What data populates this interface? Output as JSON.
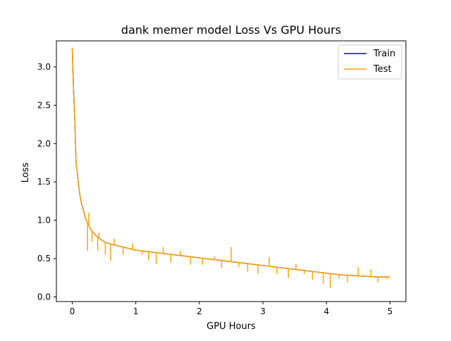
{
  "chart_data": {
    "type": "line",
    "title": "dank memer model Loss Vs GPU Hours",
    "xlabel": "GPU Hours",
    "ylabel": "Loss",
    "xlim": [
      -0.25,
      5.25
    ],
    "ylim": [
      -0.06,
      3.34
    ],
    "xticks": [
      0,
      1,
      2,
      3,
      4,
      5
    ],
    "xtick_labels": [
      "0",
      "1",
      "2",
      "3",
      "4",
      "5"
    ],
    "yticks": [
      0.0,
      0.5,
      1.0,
      1.5,
      2.0,
      2.5,
      3.0
    ],
    "ytick_labels": [
      "0.0",
      "0.5",
      "1.0",
      "1.5",
      "2.0",
      "2.5",
      "3.0"
    ],
    "grid": false,
    "legend_position": "top-right",
    "series": [
      {
        "name": "Train",
        "color": "#0000ff",
        "x": [
          0.0,
          0.02,
          0.04,
          0.06,
          0.08,
          0.1,
          0.12,
          0.15,
          0.18,
          0.2,
          0.22,
          0.25,
          0.3,
          0.35,
          0.4,
          0.45,
          0.5,
          0.6,
          0.7,
          0.8,
          0.9,
          1.0,
          1.2,
          1.4,
          1.6,
          1.8,
          2.0,
          2.2,
          2.4,
          2.6,
          2.8,
          3.0,
          3.2,
          3.4,
          3.6,
          3.8,
          4.0,
          4.2,
          4.4,
          4.6,
          4.8,
          5.0
        ],
        "y": [
          3.25,
          2.7,
          2.3,
          1.75,
          1.62,
          1.45,
          1.33,
          1.2,
          1.12,
          1.05,
          1.0,
          0.95,
          0.87,
          0.82,
          0.78,
          0.75,
          0.72,
          0.69,
          0.67,
          0.65,
          0.63,
          0.61,
          0.59,
          0.57,
          0.55,
          0.53,
          0.51,
          0.49,
          0.47,
          0.45,
          0.43,
          0.41,
          0.39,
          0.37,
          0.35,
          0.33,
          0.31,
          0.29,
          0.28,
          0.27,
          0.26,
          0.26
        ]
      },
      {
        "name": "Test",
        "color": "#ffa500",
        "x": [
          0.0,
          0.02,
          0.04,
          0.06,
          0.08,
          0.1,
          0.12,
          0.15,
          0.18,
          0.2,
          0.22,
          0.25,
          0.3,
          0.35,
          0.4,
          0.45,
          0.5,
          0.6,
          0.7,
          0.8,
          0.9,
          1.0,
          1.2,
          1.4,
          1.6,
          1.8,
          2.0,
          2.2,
          2.4,
          2.6,
          2.8,
          3.0,
          3.2,
          3.4,
          3.6,
          3.8,
          4.0,
          4.2,
          4.4,
          4.6,
          4.8,
          5.0
        ],
        "y": [
          3.25,
          2.7,
          2.3,
          1.75,
          1.62,
          1.45,
          1.33,
          1.2,
          1.12,
          1.05,
          1.0,
          0.95,
          0.87,
          0.82,
          0.78,
          0.75,
          0.72,
          0.69,
          0.67,
          0.65,
          0.63,
          0.61,
          0.59,
          0.57,
          0.55,
          0.53,
          0.51,
          0.49,
          0.47,
          0.45,
          0.43,
          0.41,
          0.39,
          0.37,
          0.35,
          0.33,
          0.31,
          0.29,
          0.28,
          0.27,
          0.26,
          0.26
        ],
        "spikes": [
          [
            0.24,
            0.6
          ],
          [
            0.26,
            1.1
          ],
          [
            0.31,
            0.72
          ],
          [
            0.4,
            0.6
          ],
          [
            0.42,
            0.84
          ],
          [
            0.52,
            0.55
          ],
          [
            0.6,
            0.47
          ],
          [
            0.66,
            0.76
          ],
          [
            0.8,
            0.55
          ],
          [
            0.95,
            0.7
          ],
          [
            1.1,
            0.55
          ],
          [
            1.2,
            0.48
          ],
          [
            1.32,
            0.43
          ],
          [
            1.43,
            0.65
          ],
          [
            1.55,
            0.45
          ],
          [
            1.7,
            0.6
          ],
          [
            1.86,
            0.42
          ],
          [
            2.05,
            0.42
          ],
          [
            2.24,
            0.53
          ],
          [
            2.35,
            0.38
          ],
          [
            2.5,
            0.65
          ],
          [
            2.62,
            0.39
          ],
          [
            2.76,
            0.33
          ],
          [
            2.92,
            0.3
          ],
          [
            3.1,
            0.52
          ],
          [
            3.22,
            0.3
          ],
          [
            3.4,
            0.25
          ],
          [
            3.52,
            0.43
          ],
          [
            3.65,
            0.3
          ],
          [
            3.78,
            0.22
          ],
          [
            3.95,
            0.17
          ],
          [
            4.06,
            0.12
          ],
          [
            4.2,
            0.24
          ],
          [
            4.33,
            0.19
          ],
          [
            4.5,
            0.39
          ],
          [
            4.7,
            0.36
          ],
          [
            4.81,
            0.19
          ],
          [
            4.95,
            0.23
          ]
        ]
      }
    ]
  }
}
